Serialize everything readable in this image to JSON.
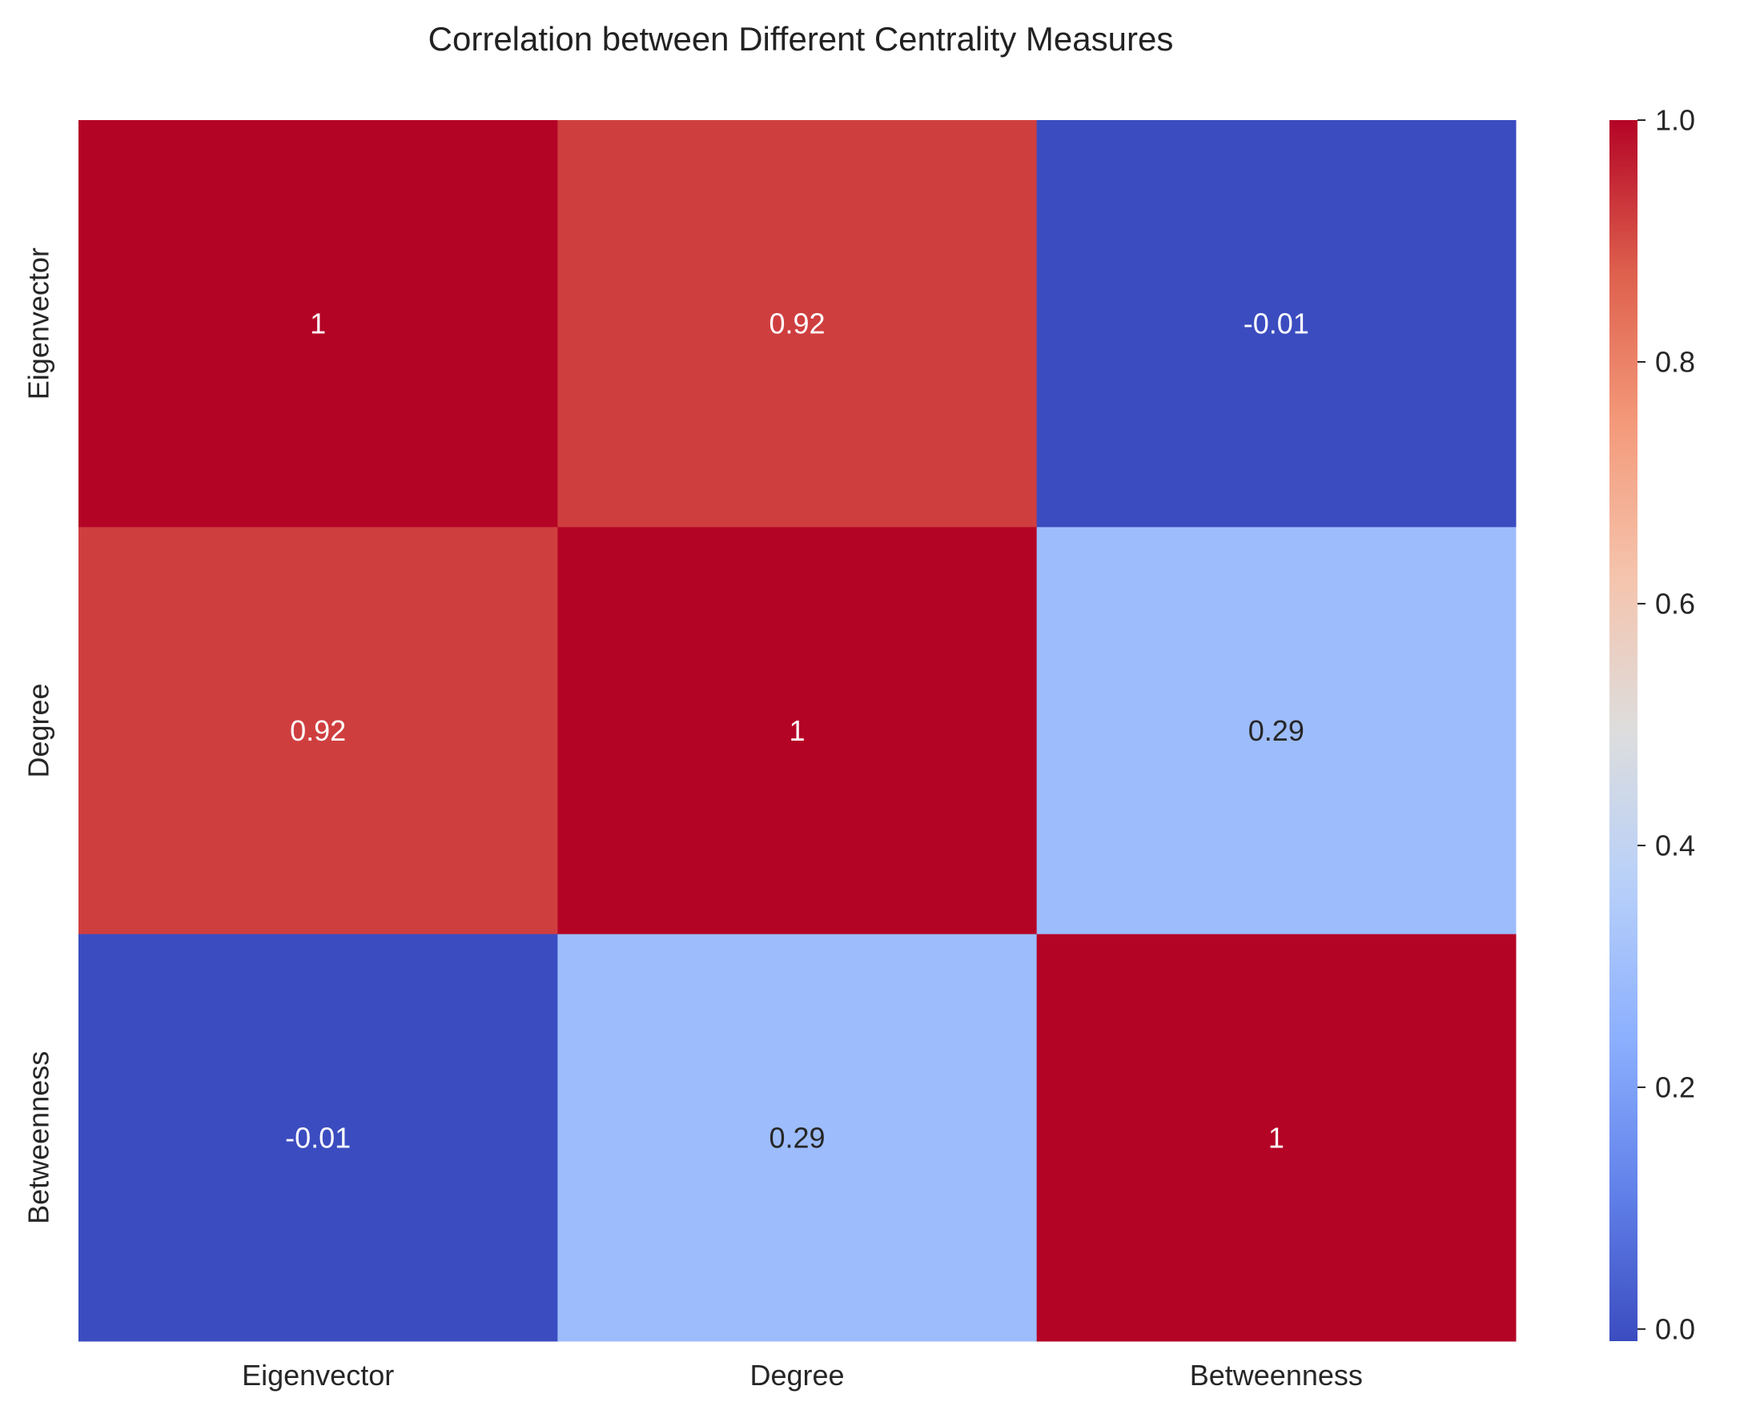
{
  "chart_data": {
    "type": "heatmap",
    "title": "Correlation between Different Centrality Measures",
    "xlabel": "",
    "ylabel": "",
    "x_categories": [
      "Eigenvector",
      "Degree",
      "Betweenness"
    ],
    "y_categories": [
      "Eigenvector",
      "Degree",
      "Betweenness"
    ],
    "values": [
      [
        1,
        0.92,
        -0.01
      ],
      [
        0.92,
        1,
        0.29
      ],
      [
        -0.01,
        0.29,
        1
      ]
    ],
    "annotations": [
      [
        "1",
        "0.92",
        "-0.01"
      ],
      [
        "0.92",
        "1",
        "0.29"
      ],
      [
        "-0.01",
        "0.29",
        "1"
      ]
    ],
    "colormap": "coolwarm",
    "colorbar": {
      "min": -0.01,
      "max": 1.0,
      "ticks": [
        0.0,
        0.2,
        0.4,
        0.6,
        0.8,
        1.0
      ],
      "tick_labels": [
        "0.0",
        "0.2",
        "0.4",
        "0.6",
        "0.8",
        "1.0"
      ]
    },
    "grid": false
  }
}
